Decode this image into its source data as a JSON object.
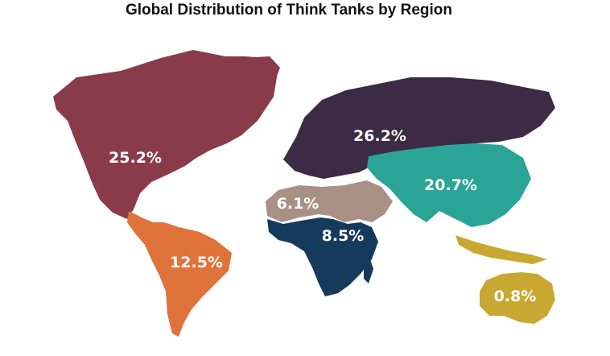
{
  "title": "Global Distribution of Think Tanks by Region",
  "regions": [
    {
      "id": "north-america",
      "share": 25.2,
      "label": "25.2%",
      "color": "#8a3b4a"
    },
    {
      "id": "latin-america",
      "share": 12.5,
      "label": "12.5%",
      "color": "#e0733a"
    },
    {
      "id": "europe",
      "share": 26.2,
      "label": "26.2%",
      "color": "#3d2a44"
    },
    {
      "id": "asia",
      "share": 20.7,
      "label": "20.7%",
      "color": "#2aa497"
    },
    {
      "id": "middle-east-north-africa",
      "share": 6.1,
      "label": "6.1%",
      "color": "#a89084"
    },
    {
      "id": "sub-saharan-africa",
      "share": 8.5,
      "label": "8.5%",
      "color": "#163a5c"
    },
    {
      "id": "oceania",
      "share": 0.8,
      "label": "0.8%",
      "color": "#c9a832"
    }
  ]
}
